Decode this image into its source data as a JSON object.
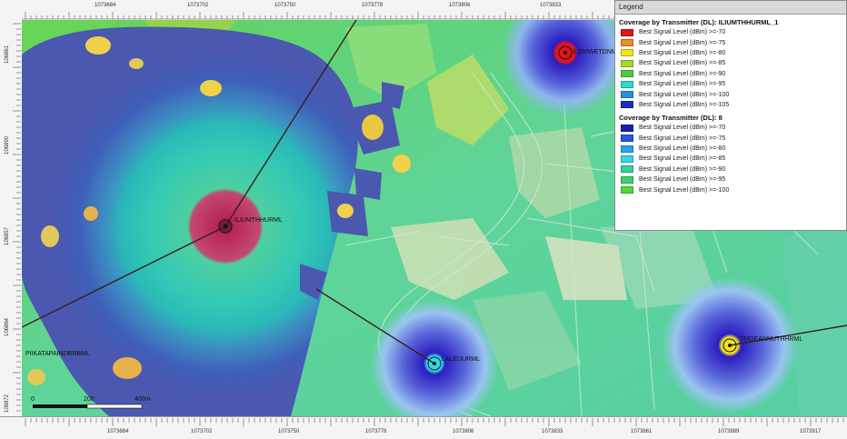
{
  "rulers": {
    "top": [
      "1073684",
      "1073702",
      "1073750",
      "1073778",
      "1073806",
      "1073833"
    ],
    "bottom": [
      "1073684",
      "1073702",
      "1073750",
      "1073778",
      "1073806",
      "1073833",
      "1073861",
      "1073889",
      "1073917"
    ],
    "left": [
      "106861",
      "106890",
      "106857",
      "106864",
      "106872"
    ]
  },
  "legend": {
    "title": "Legend",
    "groups": [
      {
        "title": "Coverage by Transmitter (DL): ILIUMTHHURML_1",
        "items": [
          {
            "label": "Best Signal Level (dBm) >=-70",
            "color": "#e3141c"
          },
          {
            "label": "Best Signal Level (dBm) >=-75",
            "color": "#f08a24"
          },
          {
            "label": "Best Signal Level (dBm) >=-80",
            "color": "#f0e21e"
          },
          {
            "label": "Best Signal Level (dBm) >=-85",
            "color": "#a8d62e"
          },
          {
            "label": "Best Signal Level (dBm) >=-90",
            "color": "#4ccd3e"
          },
          {
            "label": "Best Signal Level (dBm) >=-95",
            "color": "#30d8c8"
          },
          {
            "label": "Best Signal Level (dBm) >=-100",
            "color": "#2a8fe0"
          },
          {
            "label": "Best Signal Level (dBm) >=-105",
            "color": "#1a2fc0"
          }
        ]
      },
      {
        "title": "Coverage by Transmitter (DL): 8",
        "items": [
          {
            "label": "Best Signal Level (dBm) >=-70",
            "color": "#1a1fb0"
          },
          {
            "label": "Best Signal Level (dBm) >=-75",
            "color": "#2a55e0"
          },
          {
            "label": "Best Signal Level (dBm) >=-80",
            "color": "#2aa2ee"
          },
          {
            "label": "Best Signal Level (dBm) >=-85",
            "color": "#33d8e8"
          },
          {
            "label": "Best Signal Level (dBm) >=-90",
            "color": "#36cfa2"
          },
          {
            "label": "Best Signal Level (dBm) >=-95",
            "color": "#3ed06a"
          },
          {
            "label": "Best Signal Level (dBm) >=-100",
            "color": "#4ed83a"
          }
        ]
      }
    ]
  },
  "sites": [
    {
      "name": "ILIUMTHHURML",
      "color": "#b8255a"
    },
    {
      "name": "ILGMWETDNML",
      "color": "#e3141c"
    },
    {
      "name": "LALEUURML",
      "color": "#33d8e8"
    },
    {
      "name": "TMGEANNUTHHRML",
      "color": "#f0e21e"
    },
    {
      "name": "PIIKATAPAINDBRBML",
      "color": "#555555"
    }
  ],
  "scale": {
    "zero": "0",
    "mid": "200",
    "end": "400m"
  }
}
